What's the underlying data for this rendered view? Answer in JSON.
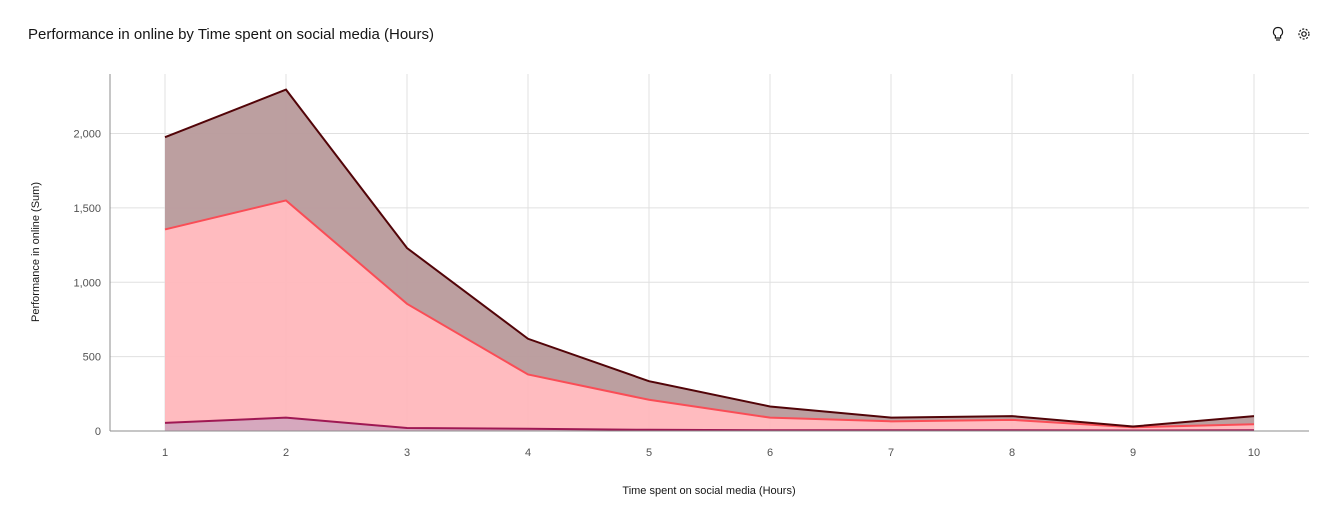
{
  "title": "Performance in online by Time spent on social media (Hours)",
  "toolbar": {
    "insights_icon": "lightbulb-icon",
    "settings_icon": "gear-icon"
  },
  "chart_data": {
    "type": "area",
    "stacked": true,
    "title": "Performance in online by Time spent on social media (Hours)",
    "xlabel": "Time spent on social media (Hours)",
    "ylabel": "Performance in online (Sum)",
    "x": [
      1,
      2,
      3,
      4,
      5,
      6,
      7,
      8,
      9,
      10
    ],
    "x_tick_labels": [
      "1",
      "2",
      "3",
      "4",
      "5",
      "6",
      "7",
      "8",
      "9",
      "10"
    ],
    "y_ticks": [
      0,
      500,
      1000,
      1500,
      2000
    ],
    "y_tick_labels": [
      "0",
      "500",
      "1,000",
      "1,500",
      "2,000"
    ],
    "ylim": [
      0,
      2400
    ],
    "grid": true,
    "legend": "none",
    "series": [
      {
        "values": [
          55,
          90,
          20,
          15,
          8,
          5,
          5,
          5,
          3,
          5
        ],
        "color": "#9f1853",
        "fill": "#d4a3bb"
      },
      {
        "values": [
          1300,
          1460,
          835,
          365,
          202,
          85,
          60,
          70,
          22,
          40
        ],
        "color": "#fa4d56",
        "fill": "#ffb7bc"
      },
      {
        "values": [
          620,
          745,
          375,
          240,
          125,
          75,
          25,
          25,
          5,
          55
        ],
        "color": "#520408",
        "fill": "#b89a9b"
      }
    ]
  }
}
